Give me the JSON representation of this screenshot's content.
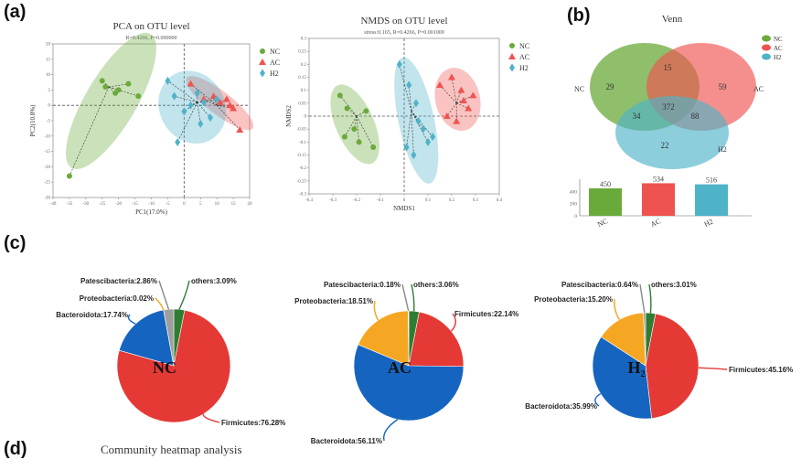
{
  "panels": {
    "a": "(a)",
    "b": "(b)",
    "c": "(c)",
    "d": "(d)"
  },
  "colors": {
    "NC": "#6aaa3a",
    "AC": "#ef5350",
    "H2": "#4fb3c8",
    "Bacteroidota": "#1565c0",
    "Firmicutes": "#e53935",
    "Proteobacteria": "#f5a623",
    "Patescibacteria": "#9e9e9e",
    "others": "#2e7d32"
  },
  "chart_data": [
    {
      "type": "scatter",
      "title": "PCA on OTU level",
      "subtitle": "R=0.4266, P=0.000000",
      "xlabel": "PC1(17.0%)",
      "ylabel": "PC2(10.8%)",
      "xlim": [
        -40,
        20
      ],
      "ylim": [
        -30,
        20
      ],
      "xticks": [
        "-40",
        "-35",
        "-30",
        "-25",
        "-20",
        "-15",
        "-10",
        "-5",
        "0",
        "5",
        "10",
        "15",
        "20"
      ],
      "yticks": [
        "20",
        "15",
        "10",
        "5",
        "0",
        "-5",
        "-10",
        "-15",
        "-20",
        "-25",
        "-30"
      ],
      "legend": [
        "NC",
        "AC",
        "H2"
      ],
      "series": [
        {
          "name": "NC",
          "marker": "circle",
          "centroid": [
            -23,
            6
          ],
          "x": [
            -25,
            -24,
            -21,
            -20,
            -17,
            -14,
            -35
          ],
          "y": [
            8,
            6,
            4,
            5,
            7,
            3,
            -23
          ]
        },
        {
          "name": "AC",
          "marker": "triangle",
          "centroid": [
            10,
            0
          ],
          "x": [
            2,
            6,
            9,
            11,
            13,
            14,
            15,
            17
          ],
          "y": [
            7,
            2,
            3,
            1,
            2,
            0,
            -1,
            -8
          ]
        },
        {
          "name": "H2",
          "marker": "diamond",
          "centroid": [
            4,
            1
          ],
          "x": [
            -5,
            -3,
            0,
            2,
            4,
            5,
            6,
            8,
            10,
            -2
          ],
          "y": [
            8,
            3,
            -2,
            0,
            4,
            -6,
            1,
            -4,
            2,
            -12
          ]
        }
      ]
    },
    {
      "type": "scatter",
      "title": "NMDS on OTU level",
      "subtitle": "stress:0.165, R=0.4266, P=0.001000",
      "xlabel": "NMDS1",
      "ylabel": "NMDS2",
      "xlim": [
        -0.4,
        0.4
      ],
      "ylim": [
        -0.3,
        0.3
      ],
      "xticks": [
        "-0.4",
        "-0.3",
        "-0.2",
        "-0.1",
        "0",
        "0.1",
        "0.2",
        "0.3",
        "0.4"
      ],
      "yticks": [
        "0.3",
        "0.25",
        "0.2",
        "0.15",
        "0.1",
        "0.05",
        "0",
        "-0.05",
        "-0.1",
        "-0.15",
        "-0.2",
        "-0.25",
        "-0.3"
      ],
      "legend": [
        "NC",
        "AC",
        "H2"
      ],
      "series": [
        {
          "name": "NC",
          "marker": "circle",
          "centroid": [
            -0.2,
            0
          ],
          "x": [
            -0.27,
            -0.24,
            -0.21,
            -0.16,
            -0.25,
            -0.19,
            -0.13
          ],
          "y": [
            0.08,
            0.03,
            -0.05,
            0.02,
            -0.08,
            -0.1,
            -0.12
          ]
        },
        {
          "name": "AC",
          "marker": "triangle",
          "centroid": [
            0.22,
            0.05
          ],
          "x": [
            0.15,
            0.2,
            0.24,
            0.25,
            0.27,
            0.29,
            0.22,
            0.18
          ],
          "y": [
            0.12,
            0.15,
            0.1,
            0.06,
            0.03,
            0.08,
            -0.02,
            0.0
          ]
        },
        {
          "name": "H2",
          "marker": "diamond",
          "centroid": [
            0.03,
            0.02
          ],
          "x": [
            -0.02,
            0.02,
            0.05,
            0.06,
            0.08,
            0.1,
            0.01,
            0.04,
            0.12
          ],
          "y": [
            0.2,
            0.12,
            0.05,
            -0.02,
            -0.05,
            -0.1,
            -0.12,
            -0.15,
            -0.08
          ]
        }
      ]
    },
    {
      "type": "venn",
      "title": "Venn",
      "legend": [
        "NC",
        "AC",
        "H2"
      ],
      "sets": [
        "NC",
        "AC",
        "H2"
      ],
      "regions": {
        "NC_only": 29,
        "AC_only": 59,
        "H2_only": 22,
        "NC_AC": 15,
        "NC_H2": 34,
        "AC_H2": 88,
        "all": 372
      }
    },
    {
      "type": "bar",
      "categories": [
        "NC",
        "AC",
        "H2"
      ],
      "values": [
        450,
        534,
        516
      ],
      "ylim": [
        0,
        600
      ],
      "yticks": [
        "0",
        "200",
        "400"
      ]
    },
    {
      "type": "pie",
      "group": "NC",
      "labels": [
        "others",
        "Firmicutes",
        "Bacteroidota",
        "Proteobacteria",
        "Patescibacteria"
      ],
      "values": [
        3.09,
        76.28,
        17.74,
        0.02,
        2.86
      ],
      "label_text": [
        "others:3.09%",
        "Firmicutes:76.28%",
        "Bacteroidota:17.74%",
        "Proteobacteria:0.02%",
        "Patescibacteria:2.86%"
      ]
    },
    {
      "type": "pie",
      "group": "AC",
      "labels": [
        "others",
        "Firmicutes",
        "Bacteroidota",
        "Proteobacteria",
        "Patescibacteria"
      ],
      "values": [
        3.06,
        22.14,
        56.11,
        18.51,
        0.18
      ],
      "label_text": [
        "others:3.06%",
        "Firmicutes:22.14%",
        "Bacteroidota:56.11%",
        "Proteobacteria:18.51%",
        "Patescibacteria:0.18%"
      ]
    },
    {
      "type": "pie",
      "group": "H2",
      "labels": [
        "others",
        "Firmicutes",
        "Bacteroidota",
        "Proteobacteria",
        "Patescibacteria"
      ],
      "values": [
        3.01,
        45.16,
        35.99,
        15.2,
        0.64
      ],
      "label_text": [
        "others:3.01%",
        "Firmicutes:45.16%",
        "Bacteroidota:35.99%",
        "Proteobacteria:15.20%",
        "Patescibacteria:0.64%"
      ]
    }
  ],
  "heatmap_title": "Community heatmap analysis"
}
